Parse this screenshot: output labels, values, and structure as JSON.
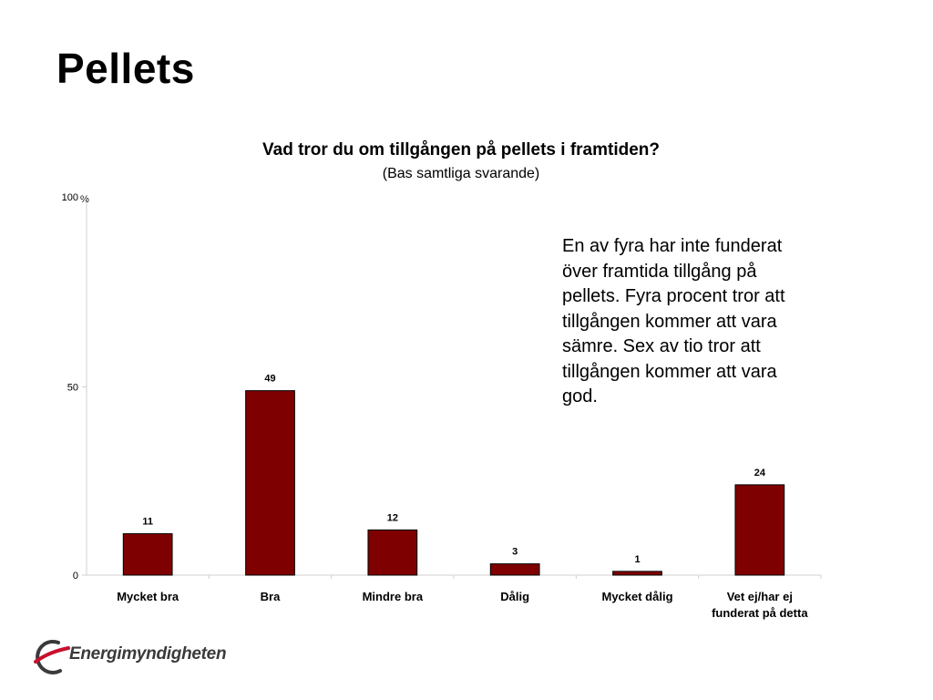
{
  "slide": {
    "title": "Pellets"
  },
  "chart_data": {
    "type": "bar",
    "title": "Vad tror du om tillgången på pellets i framtiden?",
    "subtitle": "(Bas samtliga svarande)",
    "unit": "%",
    "categories": [
      "Mycket bra",
      "Bra",
      "Mindre bra",
      "Dålig",
      "Mycket dålig",
      "Vet ej/har ej funderat på detta"
    ],
    "category_lines": [
      [
        "Mycket bra"
      ],
      [
        "Bra"
      ],
      [
        "Mindre bra"
      ],
      [
        "Dålig"
      ],
      [
        "Mycket dålig"
      ],
      [
        "Vet ej/har ej",
        "funderat på detta"
      ]
    ],
    "values": [
      11,
      49,
      12,
      3,
      1,
      24
    ],
    "ylim": [
      0,
      100
    ],
    "yticks": [
      0,
      50,
      100
    ],
    "bar_color": "#7f0000",
    "grid": false,
    "data_labels": true
  },
  "annotation": {
    "lines": [
      "En av fyra har inte funderat",
      "över framtida tillgång på",
      "pellets. Fyra procent tror att",
      "tillgången kommer att vara",
      "sämre. Sex av tio tror att",
      "tillgången kommer att vara",
      "god."
    ]
  },
  "logo": {
    "text": "Energimyndigheten",
    "accent_color": "#c8102e"
  }
}
